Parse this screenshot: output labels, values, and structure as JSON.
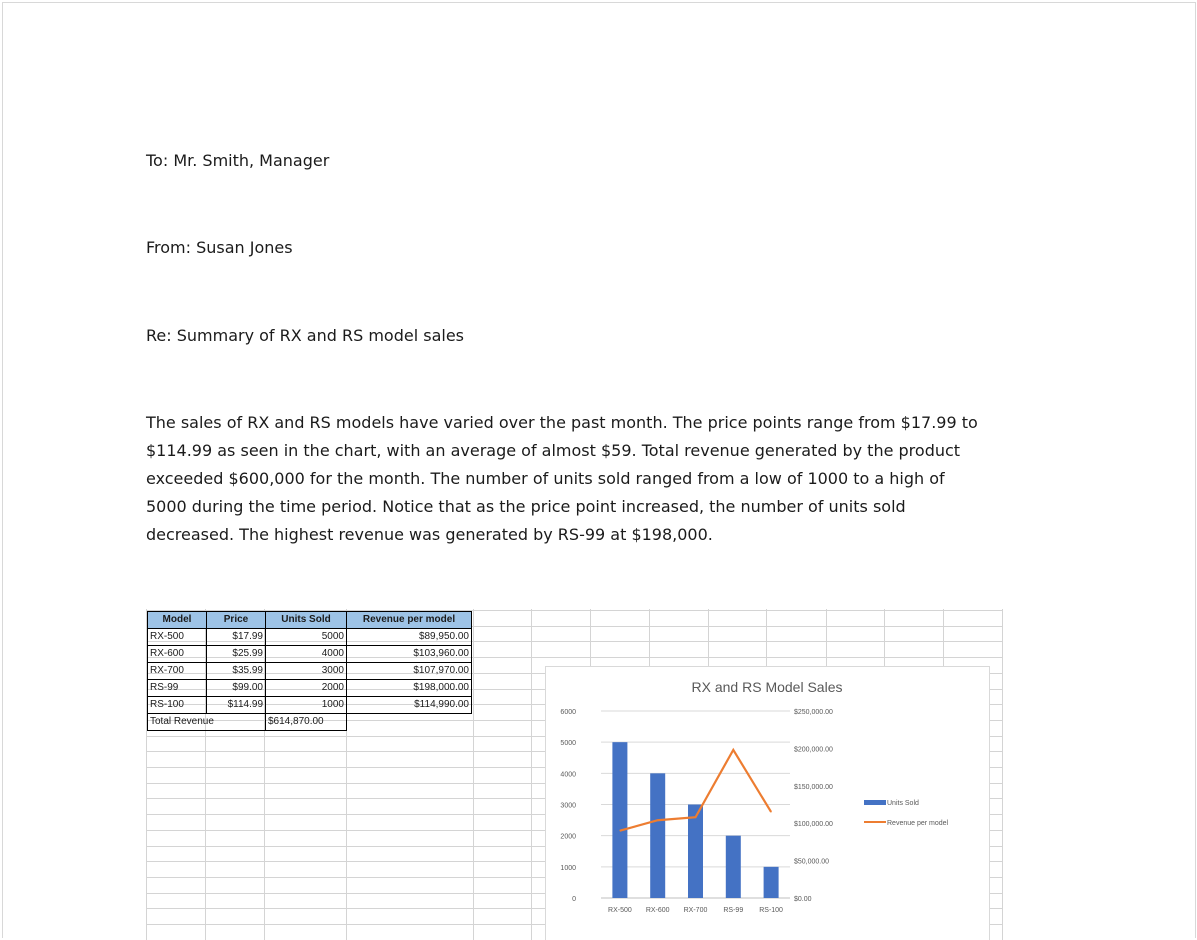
{
  "memo": {
    "to": "To: Mr. Smith, Manager",
    "from": "From: Susan Jones",
    "re": "Re: Summary of RX and RS model sales",
    "paragraph_lines": [
      "The sales of RX and RS models have varied over the past month.  The price points range from $17.99 to",
      "$114.99 as seen in the chart, with an average of almost $59.  Total revenue generated by the product",
      "exceeded $600,000 for the month.  The number of units sold ranged from a low of 1000 to a high of",
      "5000 during the time period.  Notice that as the price point increased, the number of units sold",
      "decreased.  The highest revenue was generated by RS-99 at $198,000."
    ]
  },
  "table": {
    "headers": [
      "Model",
      "Price",
      "Units Sold",
      "Revenue per model"
    ],
    "rows": [
      {
        "model": "RX-500",
        "price": "$17.99",
        "units": "5000",
        "revenue": "$89,950.00"
      },
      {
        "model": "RX-600",
        "price": "$25.99",
        "units": "4000",
        "revenue": "$103,960.00"
      },
      {
        "model": "RX-700",
        "price": "$35.99",
        "units": "3000",
        "revenue": "$107,970.00"
      },
      {
        "model": "RS-99",
        "price": "$99.00",
        "units": "2000",
        "revenue": "$198,000.00"
      },
      {
        "model": "RS-100",
        "price": "$114.99",
        "units": "1000",
        "revenue": "$114,990.00"
      }
    ],
    "total_label": "Total Revenue",
    "total_value": "$614,870.00",
    "header_color": "#9dc3e6"
  },
  "chart_data": {
    "type": "bar",
    "title": "RX and RS Model Sales",
    "categories": [
      "RX-500",
      "RX-600",
      "RX-700",
      "RS-99",
      "RS-100"
    ],
    "series": [
      {
        "name": "Units Sold",
        "type": "bar",
        "axis": "left",
        "color": "#4472c4",
        "values": [
          5000,
          4000,
          3000,
          2000,
          1000
        ]
      },
      {
        "name": "Revenue per model",
        "type": "line",
        "axis": "right",
        "color": "#ed7d31",
        "values": [
          89950,
          103960,
          107970,
          198000,
          114990
        ]
      }
    ],
    "left_axis": {
      "range": [
        0,
        6000
      ],
      "ticks": [
        "0",
        "1000",
        "2000",
        "3000",
        "4000",
        "5000",
        "6000"
      ]
    },
    "right_axis": {
      "range": [
        0,
        250000
      ],
      "ticks": [
        "$0.00",
        "$50,000.00",
        "$100,000.00",
        "$150,000.00",
        "$200,000.00",
        "$250,000.00"
      ]
    },
    "x_tick_labels": [
      "RX-500",
      "RX-600",
      "RX-700",
      "RS-99",
      "RS-100"
    ],
    "legend_position": "right",
    "grid": true
  }
}
